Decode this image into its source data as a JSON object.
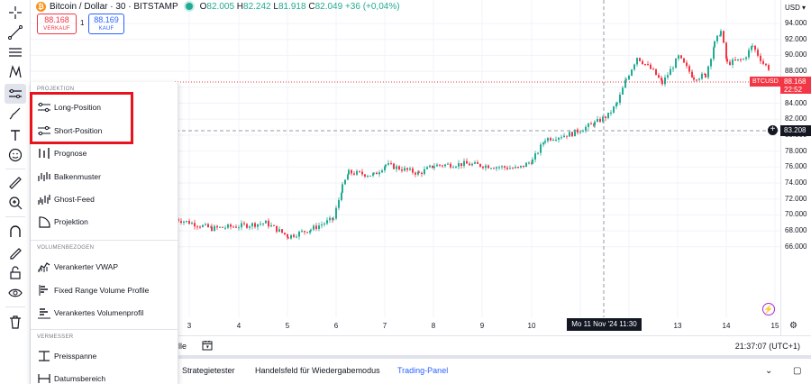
{
  "header": {
    "symbol_title": "Bitcoin / Dollar · 30 · BITSTAMP",
    "ohlc": {
      "o_label": "O",
      "o": "82.005",
      "h_label": "H",
      "h": "82.242",
      "l_label": "L",
      "l": "81.918",
      "c_label": "C",
      "c": "82.049",
      "change": "+36 (+0,04%)"
    },
    "sell": {
      "price": "88.168",
      "label": "VERKAUF"
    },
    "spread": "1",
    "buy": {
      "price": "88.169",
      "label": "KAUF"
    }
  },
  "price_scale": {
    "currency": "USD",
    "labels": [
      "94.000",
      "92.000",
      "90.000",
      "88.000",
      "86.000",
      "84.000",
      "82.000",
      "80.000",
      "78.000",
      "76.000",
      "74.000",
      "72.000",
      "70.000",
      "68.000",
      "66.000"
    ],
    "current_price": "88.168",
    "countdown": "22:52",
    "symbol_tag": "BTCUSD",
    "crosshair_price": "83.208"
  },
  "time_axis": {
    "labels": [
      "3",
      "4",
      "5",
      "6",
      "7",
      "8",
      "9",
      "10",
      "11",
      "12",
      "13",
      "14",
      "15"
    ],
    "crosshair_time": "Mo 11 Nov '24   11:30"
  },
  "status_bar": {
    "ghost_text": "lle",
    "clock": "21:37:07 (UTC+1)"
  },
  "bottom_tabs": [
    {
      "label": "Strategietester",
      "active": false
    },
    {
      "label": "Handelsfeld für Wiedergabemodus",
      "active": false
    },
    {
      "label": "Trading-Panel",
      "active": true
    }
  ],
  "menu": {
    "sections": [
      {
        "title": "PROJEKTION",
        "items": [
          "Long-Position",
          "Short-Position",
          "Prognose",
          "Balkenmuster",
          "Ghost-Feed",
          "Projektion"
        ]
      },
      {
        "title": "VOLUMENBEZOGEN",
        "items": [
          "Verankerter VWAP",
          "Fixed Range Volume Profile",
          "Verankertes Volumenprofil"
        ]
      },
      {
        "title": "VERMESSER",
        "items": [
          "Preisspanne",
          "Datumsbereich"
        ]
      }
    ]
  },
  "colors": {
    "up": "#22ab94",
    "down": "#f23645",
    "accent": "#2962ff",
    "highlight": "#e8141d"
  },
  "chart_data": {
    "type": "candlestick",
    "title": "Bitcoin / Dollar · 30 · BITSTAMP",
    "x_ticks": [
      "3",
      "4",
      "5",
      "6",
      "7",
      "8",
      "9",
      "10",
      "11",
      "12",
      "13",
      "14",
      "15"
    ],
    "ylim": [
      65000,
      95000
    ],
    "approx_close_by_day": {
      "3": 68800,
      "4": 68500,
      "5": 67800,
      "6": 74500,
      "7": 75800,
      "8": 76500,
      "9": 76300,
      "10": 78500,
      "11": 84000,
      "12": 88500,
      "13": 88500,
      "14": 90000,
      "15": 88168
    }
  }
}
